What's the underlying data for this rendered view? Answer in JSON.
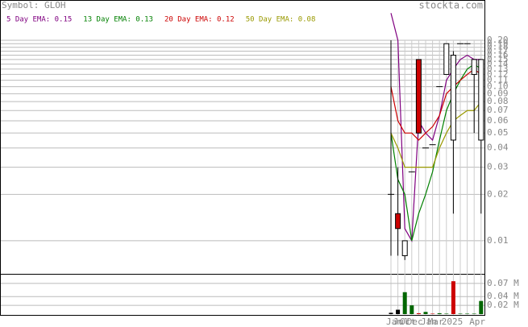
{
  "chart_data": [
    {
      "type": "candlestick",
      "title": "Symbol: GLOH",
      "source": "stockta.com",
      "log_scale": true,
      "grid": true,
      "categories": [
        "Jan",
        "Jul",
        "Oct",
        "Dec",
        null,
        "Jan",
        "Mar",
        null,
        "2025",
        null,
        null,
        null,
        "Apr",
        null
      ],
      "open": [
        0.02,
        0.015,
        0.008,
        0.028,
        0.15,
        0.04,
        0.042,
        0.1,
        0.12,
        0.045,
        0.19,
        0.19,
        0.12,
        0.045
      ],
      "high": [
        0.2,
        0.03,
        0.01,
        0.028,
        0.15,
        0.04,
        0.042,
        0.1,
        0.19,
        0.17,
        0.19,
        0.19,
        0.15,
        0.15
      ],
      "low": [
        0.008,
        0.008,
        0.0075,
        0.028,
        0.05,
        0.04,
        0.042,
        0.1,
        0.12,
        0.015,
        0.19,
        0.19,
        0.05,
        0.015
      ],
      "close": [
        0.02,
        0.012,
        0.01,
        0.028,
        0.05,
        0.04,
        0.042,
        0.1,
        0.19,
        0.16,
        0.19,
        0.19,
        0.15,
        0.15
      ],
      "up_color": "#ffffff",
      "down_color": "#cc0000",
      "series": [
        {
          "name": "5 Day EMA: 0.15",
          "color": "#800080",
          "values": [
            0.3,
            0.2,
            0.012,
            0.01,
            0.06,
            0.05,
            0.045,
            0.065,
            0.11,
            0.13,
            0.15,
            0.16,
            0.15,
            0.15
          ]
        },
        {
          "name": "13 Day EMA: 0.13",
          "color": "#008000",
          "values": [
            0.05,
            0.025,
            0.02,
            0.01,
            0.015,
            0.02,
            0.028,
            0.045,
            0.07,
            0.09,
            0.11,
            0.13,
            0.14,
            0.13
          ]
        },
        {
          "name": "20 Day EMA: 0.12",
          "color": "#cc0000",
          "values": [
            0.1,
            0.06,
            0.05,
            0.05,
            0.045,
            0.05,
            0.055,
            0.065,
            0.09,
            0.1,
            0.11,
            0.12,
            0.13,
            0.12
          ]
        },
        {
          "name": "50 Day EMA: 0.08",
          "color": "#999900",
          "values": [
            0.05,
            0.04,
            0.03,
            0.03,
            0.03,
            0.03,
            0.03,
            0.04,
            0.05,
            0.06,
            0.065,
            0.07,
            0.07,
            0.08
          ]
        }
      ],
      "ylim": [
        0.0061,
        0.365
      ],
      "yticks": [
        {
          "value": 0.2,
          "label": "0.20"
        },
        0.19,
        0.18,
        0.17,
        0.16,
        0.15,
        0.14,
        0.13,
        0.12,
        0.11,
        {
          "value": 0.1,
          "label": "0.10"
        },
        0.09,
        0.08,
        0.07,
        0.06,
        0.05,
        0.04,
        0.03,
        0.02,
        0.01
      ]
    },
    {
      "type": "bar",
      "grid": true,
      "values": [
        0.003,
        0.01,
        0.05,
        0.02,
        0.002,
        0.005,
        0.001,
        0.002,
        0.001,
        0.075,
        0.001,
        0.001,
        0.001,
        0.03
      ],
      "colors": [
        "#000000",
        "#000000",
        "#006600",
        "#006600",
        "#cc0000",
        "#006600",
        "#cc0000",
        "#006600",
        "#006600",
        "#cc0000",
        "#006600",
        "#006600",
        "#006600",
        "#006600"
      ],
      "ylim": [
        0,
        0.09
      ],
      "yticks": [
        {
          "value": 0.07,
          "label": "0.07 M"
        },
        {
          "value": 0.04,
          "label": "0.04 M"
        },
        {
          "value": 0.02,
          "label": "0.02 M"
        }
      ]
    }
  ]
}
